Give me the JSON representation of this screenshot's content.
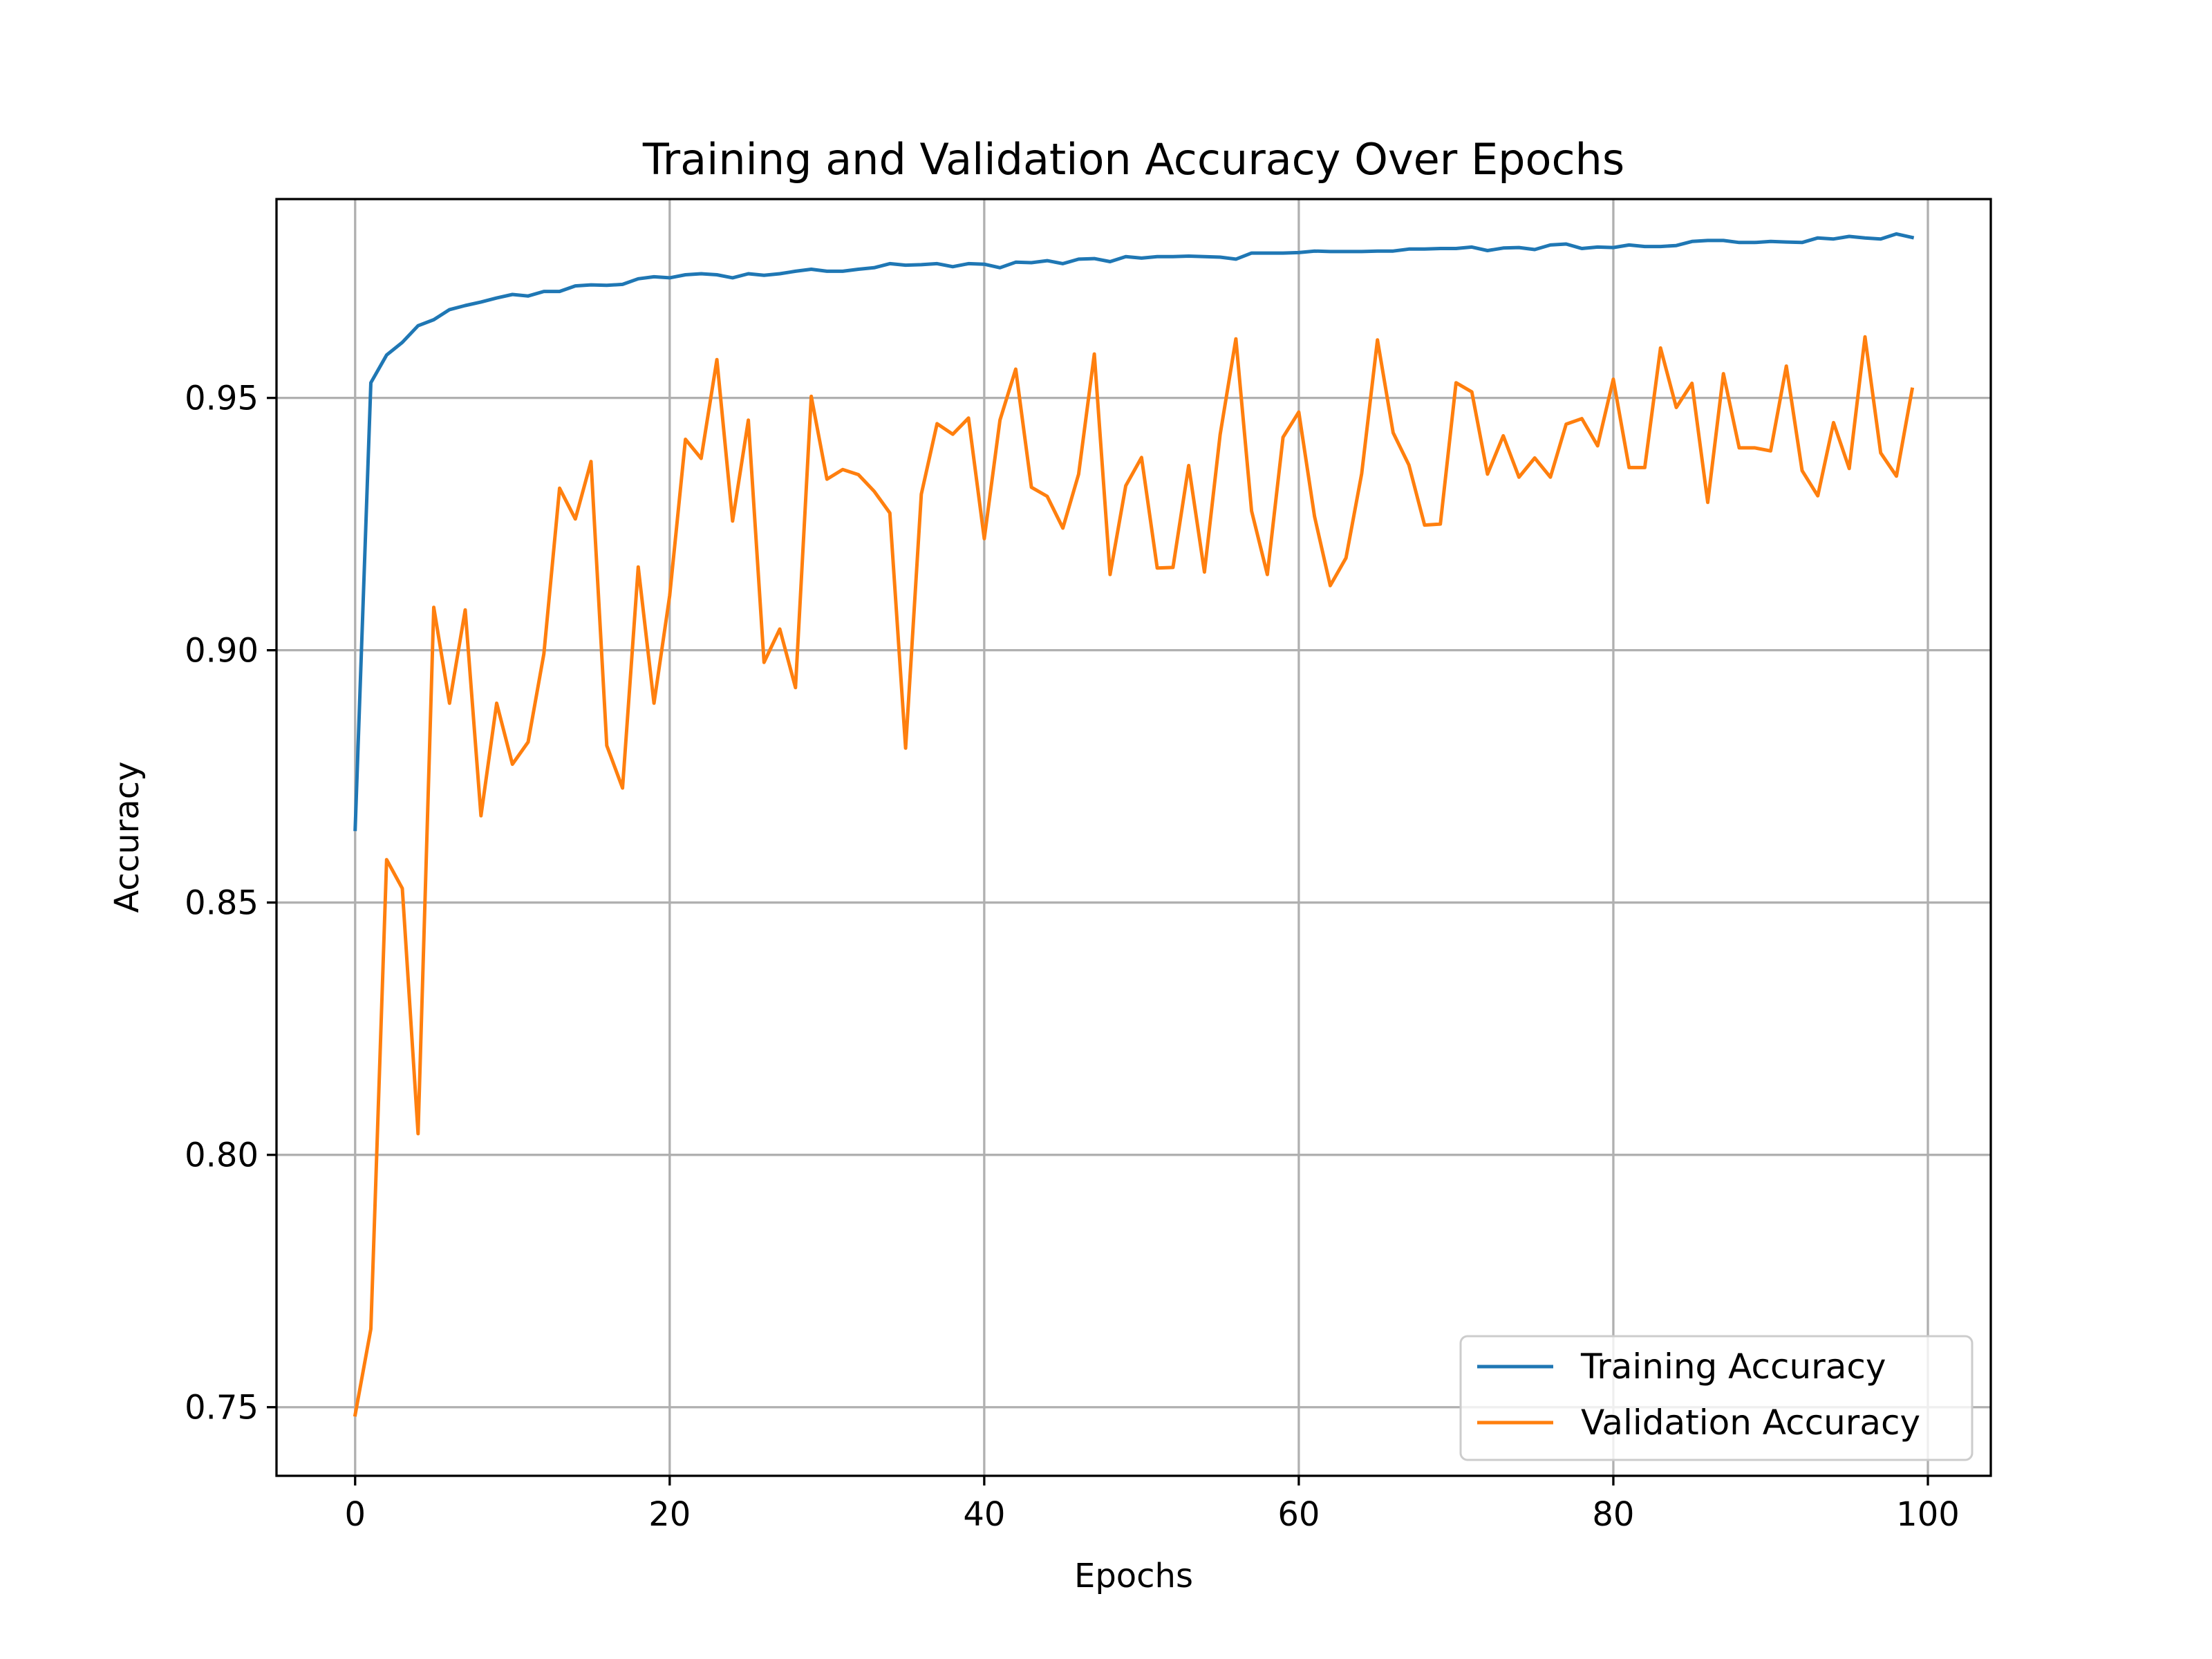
{
  "chart_data": {
    "type": "line",
    "title": "Training and Validation Accuracy Over Epochs",
    "xlabel": "Epochs",
    "ylabel": "Accuracy",
    "xlim": [
      -5,
      104
    ],
    "ylim": [
      0.7364,
      0.9894
    ],
    "xticks": [
      0,
      20,
      40,
      60,
      80,
      100
    ],
    "xtick_labels": [
      "0",
      "20",
      "40",
      "60",
      "80",
      "100"
    ],
    "yticks": [
      0.75,
      0.8,
      0.85,
      0.9,
      0.95
    ],
    "ytick_labels": [
      "0.75",
      "0.80",
      "0.85",
      "0.90",
      "0.95"
    ],
    "grid": true,
    "legend_position": "lower right",
    "x": [
      0,
      1,
      2,
      3,
      4,
      5,
      6,
      7,
      8,
      9,
      10,
      11,
      12,
      13,
      14,
      15,
      16,
      17,
      18,
      19,
      20,
      21,
      22,
      23,
      24,
      25,
      26,
      27,
      28,
      29,
      30,
      31,
      32,
      33,
      34,
      35,
      36,
      37,
      38,
      39,
      40,
      41,
      42,
      43,
      44,
      45,
      46,
      47,
      48,
      49,
      50,
      51,
      52,
      53,
      54,
      55,
      56,
      57,
      58,
      59,
      60,
      61,
      62,
      63,
      64,
      65,
      66,
      67,
      68,
      69,
      70,
      71,
      72,
      73,
      74,
      75,
      76,
      77,
      78,
      79,
      80,
      81,
      82,
      83,
      84,
      85,
      86,
      87,
      88,
      89,
      90,
      91,
      92,
      93,
      94,
      95,
      96,
      97,
      98,
      99
    ],
    "series": [
      {
        "name": "Training Accuracy",
        "color": "#1f77b4",
        "values": [
          0.8645,
          0.953,
          0.9585,
          0.961,
          0.9643,
          0.9655,
          0.9675,
          0.9683,
          0.969,
          0.9698,
          0.9705,
          0.9702,
          0.9711,
          0.9711,
          0.9722,
          0.9724,
          0.9723,
          0.9725,
          0.9736,
          0.974,
          0.9738,
          0.9744,
          0.9746,
          0.9744,
          0.9738,
          0.9746,
          0.9743,
          0.9746,
          0.9751,
          0.9755,
          0.9751,
          0.9751,
          0.9755,
          0.9758,
          0.9766,
          0.9763,
          0.9764,
          0.9766,
          0.976,
          0.9766,
          0.9765,
          0.9758,
          0.9769,
          0.9768,
          0.9772,
          0.9766,
          0.9775,
          0.9776,
          0.977,
          0.978,
          0.9777,
          0.978,
          0.978,
          0.9781,
          0.978,
          0.9779,
          0.9775,
          0.9787,
          0.9787,
          0.9787,
          0.9788,
          0.9791,
          0.979,
          0.979,
          0.979,
          0.9791,
          0.9791,
          0.9795,
          0.9795,
          0.9796,
          0.9796,
          0.9799,
          0.9792,
          0.9797,
          0.9798,
          0.9794,
          0.9803,
          0.9805,
          0.9796,
          0.9799,
          0.9798,
          0.9803,
          0.98,
          0.98,
          0.9802,
          0.981,
          0.9812,
          0.9812,
          0.9808,
          0.9808,
          0.981,
          0.9809,
          0.9808,
          0.9817,
          0.9815,
          0.982,
          0.9817,
          0.9815,
          0.9825,
          0.9818
        ]
      },
      {
        "name": "Validation Accuracy",
        "color": "#ff7f0e",
        "values": [
          0.7485,
          0.7655,
          0.8585,
          0.8528,
          0.8042,
          0.9085,
          0.8895,
          0.908,
          0.8672,
          0.8895,
          0.8774,
          0.8818,
          0.8993,
          0.9321,
          0.926,
          0.9374,
          0.8811,
          0.8727,
          0.9165,
          0.8895,
          0.9108,
          0.9418,
          0.938,
          0.9576,
          0.9256,
          0.9456,
          0.8976,
          0.9042,
          0.8926,
          0.9503,
          0.9339,
          0.9358,
          0.9348,
          0.9315,
          0.9272,
          0.8806,
          0.9309,
          0.9449,
          0.9428,
          0.946,
          0.9221,
          0.9456,
          0.9557,
          0.9323,
          0.9305,
          0.9242,
          0.9349,
          0.9587,
          0.915,
          0.9326,
          0.9382,
          0.9163,
          0.9164,
          0.9366,
          0.9155,
          0.9427,
          0.9617,
          0.9276,
          0.915,
          0.9422,
          0.9472,
          0.9265,
          0.9128,
          0.9183,
          0.935,
          0.9615,
          0.9431,
          0.9367,
          0.9248,
          0.925,
          0.953,
          0.9512,
          0.9349,
          0.9425,
          0.9343,
          0.9381,
          0.9343,
          0.9448,
          0.9459,
          0.9405,
          0.9537,
          0.9362,
          0.9362,
          0.9599,
          0.9481,
          0.9529,
          0.9293,
          0.9548,
          0.9401,
          0.9401,
          0.9395,
          0.9563,
          0.9356,
          0.9306,
          0.9451,
          0.936,
          0.9621,
          0.9391,
          0.9345,
          0.9517
        ]
      }
    ]
  }
}
